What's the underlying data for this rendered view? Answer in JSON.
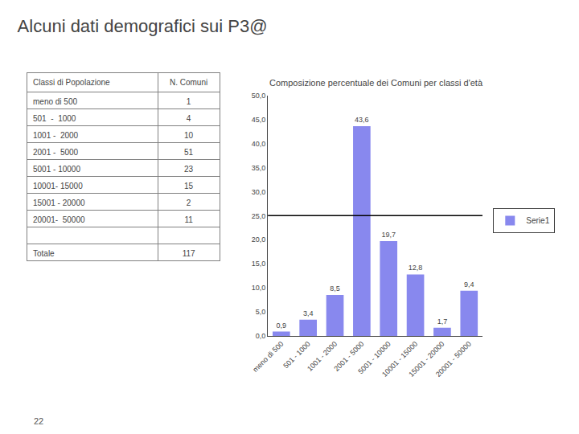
{
  "title": "Alcuni dati demografici sui P3@",
  "annotations": [
    "22"
  ],
  "chart_data": [
    {
      "type": "table",
      "columns": [
        "Classi di Popolazione",
        "N. Comuni"
      ],
      "rows": [
        [
          "meno di 500",
          "1"
        ],
        [
          "501  -  1000",
          "4"
        ],
        [
          "1001 -  2000",
          "10"
        ],
        [
          "2001 -  5000",
          "51"
        ],
        [
          "5001 - 10000",
          "23"
        ],
        [
          "10001- 15000",
          "15"
        ],
        [
          "15001 - 20000",
          "2"
        ],
        [
          "20001-  50000",
          "11"
        ],
        [
          null,
          null
        ],
        [
          "Totale",
          "117"
        ]
      ]
    },
    {
      "type": "bar",
      "title": "Composizione percentuale dei Comuni per classi d'età",
      "categories": [
        "meno di 500",
        "501 - 1000",
        "1001 - 2000",
        "2001 - 5000",
        "5001 - 10000",
        "10001 - 15000",
        "15001 - 20000",
        "20001 - 50000"
      ],
      "series": [
        {
          "name": "Serie1",
          "color": "#8888EE",
          "values": [
            0.9,
            3.4,
            8.5,
            43.6,
            19.7,
            12.8,
            1.7,
            9.4
          ],
          "value_labels": [
            "0,9",
            "3,4",
            "8,5",
            "43,6",
            "19,7",
            "12,8",
            "1,7",
            "9,4"
          ]
        }
      ],
      "data_labels": true,
      "hline": 25.0,
      "ylim": [
        0,
        50
      ],
      "yticks": [
        {
          "value": 0.0,
          "label": "0,0"
        },
        {
          "value": 5.0,
          "label": "5,0"
        },
        {
          "value": 10.0,
          "label": "10,0"
        },
        {
          "value": 15.0,
          "label": "15,0"
        },
        {
          "value": 20.0,
          "label": "20,0"
        },
        {
          "value": 25.0,
          "label": "25,0"
        },
        {
          "value": 30.0,
          "label": "30,0"
        },
        {
          "value": 35.0,
          "label": "35,0"
        },
        {
          "value": 40.0,
          "label": "40,0"
        },
        {
          "value": 45.0,
          "label": "45,0"
        },
        {
          "value": 50.0,
          "label": "50,0"
        }
      ],
      "grid": false,
      "legend": "right"
    }
  ]
}
